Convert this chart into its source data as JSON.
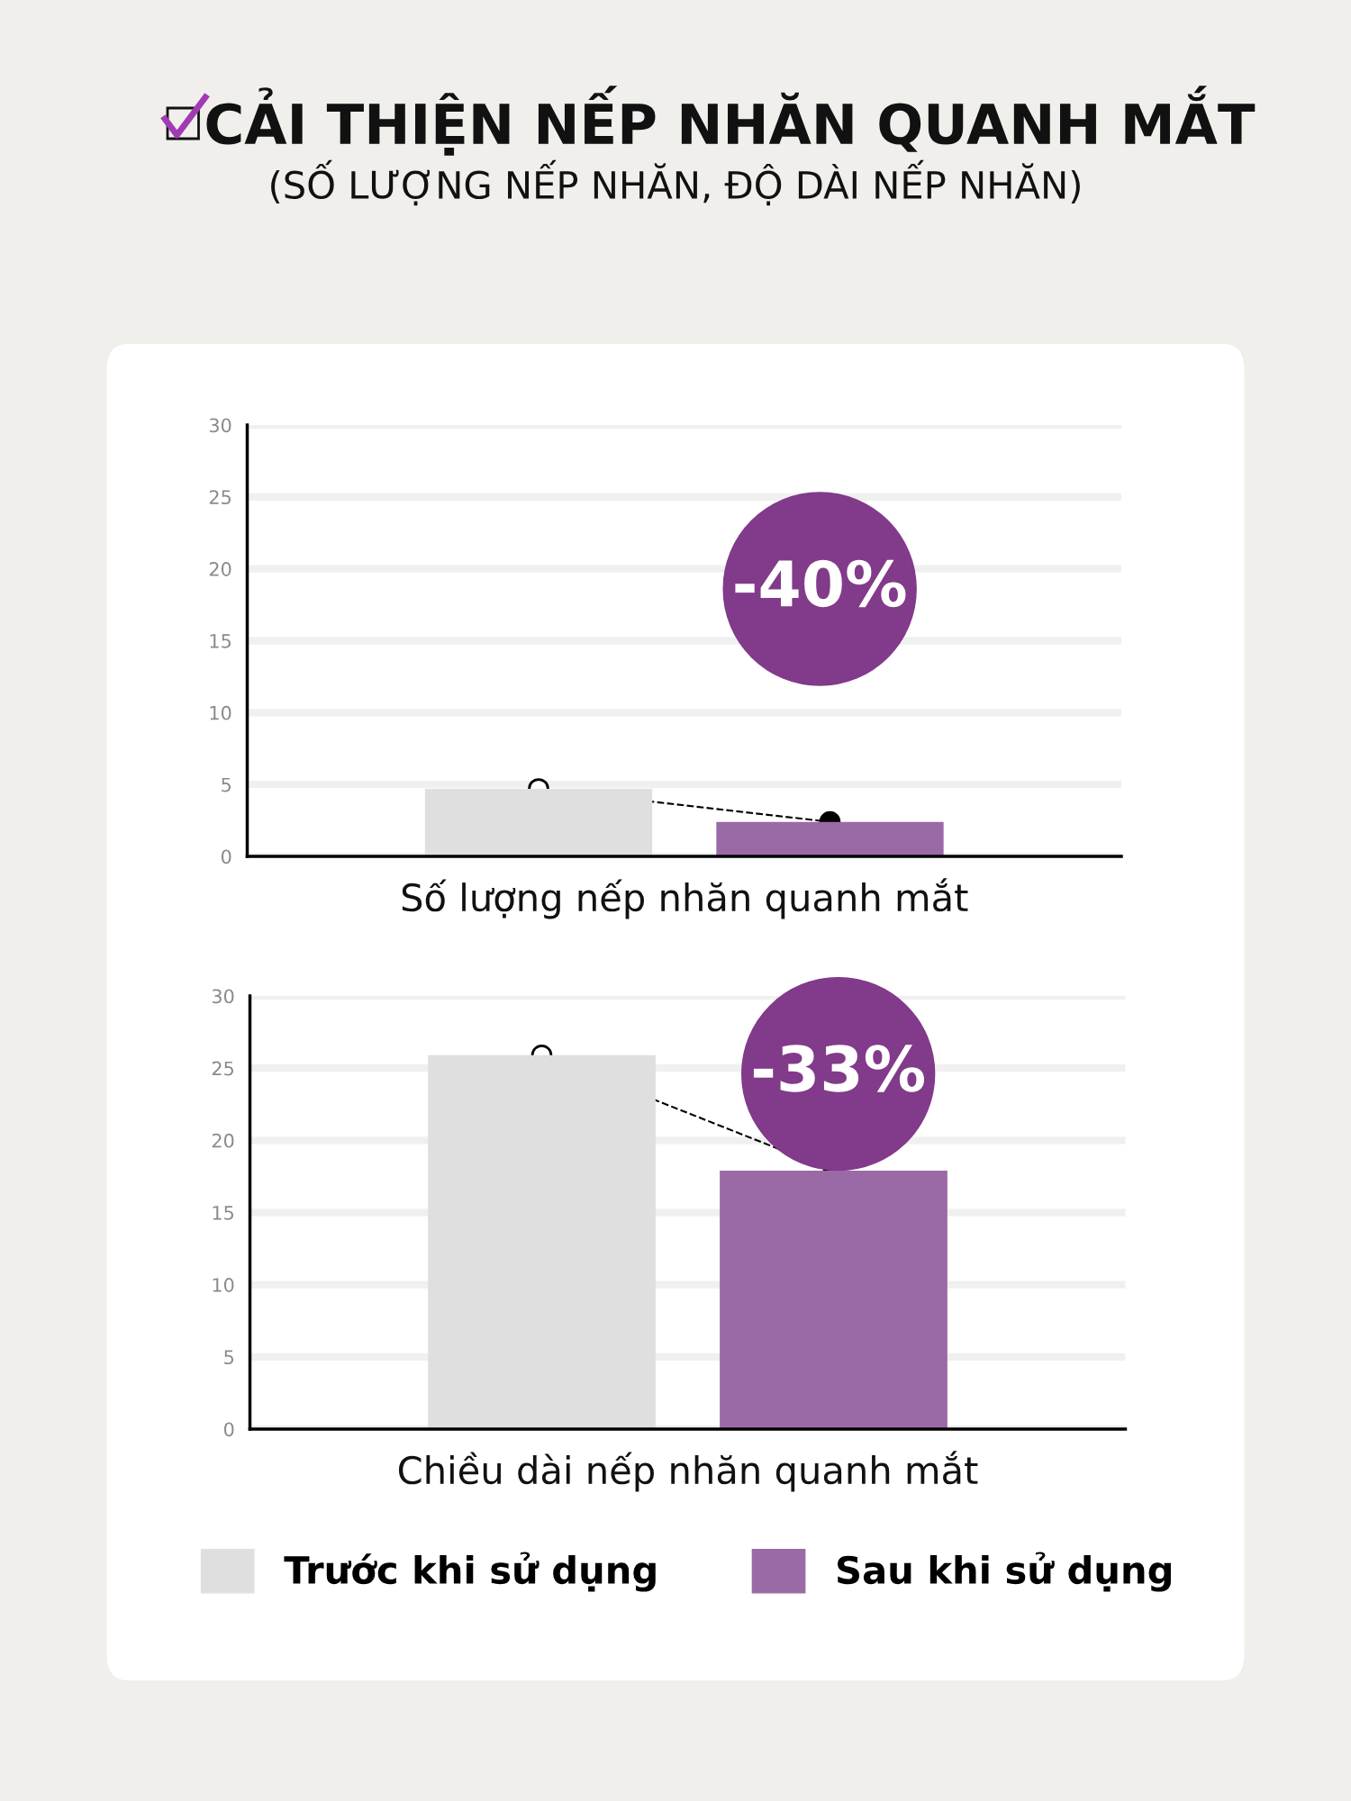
{
  "chart_data": [
    {
      "type": "bar",
      "title": "CẢI THIỆN NẾP NHĂN QUANH MẮT",
      "subtitle": "(SỐ LƯỢNG NẾP NHĂN, ĐỘ DÀI NẾP NHĂN)",
      "xlabel": "Số lượng nếp nhăn quanh mắt",
      "categories": [
        null,
        null
      ],
      "series": [
        {
          "color": "#dfdfdf",
          "values": [
            4.7,
            null
          ]
        },
        {
          "color": "#9a6aa6",
          "values": [
            null,
            2.4
          ]
        }
      ],
      "ylim": [
        0,
        30
      ],
      "yticks": [
        0,
        5,
        10,
        15,
        20,
        25,
        30
      ],
      "grid": "y",
      "legend": false,
      "annotations": [
        "-40%"
      ]
    },
    {
      "type": "bar",
      "xlabel": "Chiều dài nếp nhăn quanh mắt",
      "categories": [
        null,
        null
      ],
      "series": [
        {
          "name": "Trước khi sử dụng",
          "color": "#dfdfdf",
          "values": [
            25.9,
            null
          ]
        },
        {
          "name": "Sau khi sử dụng",
          "color": "#9a6aa6",
          "values": [
            null,
            17.9
          ]
        }
      ],
      "ylim": [
        0,
        30
      ],
      "yticks": [
        0,
        5,
        10,
        15,
        20,
        25,
        30
      ],
      "grid": "y",
      "legend": "bottom",
      "annotations": [
        "-33%"
      ]
    }
  ]
}
